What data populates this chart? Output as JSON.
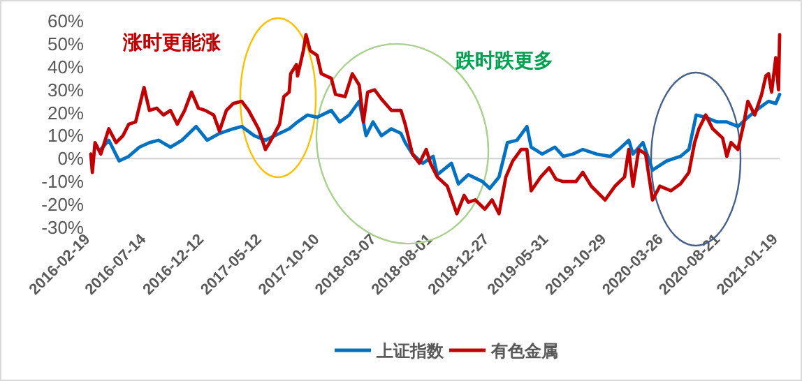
{
  "chart_data": {
    "type": "line",
    "annotations": [
      "涨时更能涨",
      "跌时跌更多"
    ],
    "ref_lines": [
      {
        "axis": "y",
        "value": 0,
        "color": "#d0d0d0"
      }
    ],
    "xlim": [
      "2016-02-19",
      "2021-01-22"
    ],
    "xticks": [
      "2016-02-19",
      "2016-07-14",
      "2016-12-12",
      "2017-05-12",
      "2017-10-10",
      "2018-03-07",
      "2018-08-01",
      "2018-12-27",
      "2019-05-31",
      "2019-10-29",
      "2020-03-26",
      "2020-08-21",
      "2021-01-19"
    ],
    "ylim": [
      -30,
      60
    ],
    "yticks": [
      {
        "value": -30,
        "label": "-30%"
      },
      {
        "value": -20,
        "label": "-20%"
      },
      {
        "value": -10,
        "label": "-10%"
      },
      {
        "value": 0,
        "label": "0%"
      },
      {
        "value": 10,
        "label": "10%"
      },
      {
        "value": 20,
        "label": "20%"
      },
      {
        "value": 30,
        "label": "30%"
      },
      {
        "value": 40,
        "label": "40%"
      },
      {
        "value": 50,
        "label": "50%"
      },
      {
        "value": 60,
        "label": "60%"
      }
    ],
    "legend": "bottom",
    "marker": "none",
    "line_style": "solid",
    "series": [
      {
        "name": "上证指数",
        "color": "#0070c0",
        "x": [
          "2016-03-16",
          "2016-04-06",
          "2016-05-03",
          "2016-05-28",
          "2016-06-25",
          "2016-07-21",
          "2016-08-14",
          "2016-09-14",
          "2016-10-14",
          "2016-11-20",
          "2016-12-19",
          "2017-01-20",
          "2017-02-25",
          "2017-03-19",
          "2017-04-21",
          "2017-05-20",
          "2017-06-26",
          "2017-07-21",
          "2017-08-12",
          "2017-09-07",
          "2017-10-02",
          "2017-11-08",
          "2017-11-30",
          "2017-12-25",
          "2018-01-20",
          "2018-02-07",
          "2018-02-25",
          "2018-03-19",
          "2018-04-14",
          "2018-05-09",
          "2018-05-20",
          "2018-06-08",
          "2018-07-05",
          "2018-08-01",
          "2018-08-12",
          "2018-09-18",
          "2018-10-06",
          "2018-11-01",
          "2018-12-08",
          "2018-12-27",
          "2019-01-20",
          "2019-02-11",
          "2019-03-08",
          "2019-04-03",
          "2019-04-14",
          "2019-05-13",
          "2019-06-15",
          "2019-07-07",
          "2019-08-01",
          "2019-08-27",
          "2019-10-02",
          "2019-11-07",
          "2019-11-29",
          "2019-12-25",
          "2020-01-05",
          "2020-01-31",
          "2020-02-25",
          "2020-04-02",
          "2020-05-08",
          "2020-05-30",
          "2020-06-18",
          "2020-07-13",
          "2020-08-11",
          "2020-09-06",
          "2020-10-05",
          "2020-10-31",
          "2020-11-29",
          "2020-12-24",
          "2021-01-12",
          "2021-01-22"
        ],
        "values": [
          4,
          8,
          -1,
          1,
          5,
          7,
          8,
          5,
          8,
          14,
          8,
          11,
          13,
          14,
          10,
          8,
          11,
          13,
          16,
          19,
          18,
          21,
          16,
          19,
          25,
          10,
          16,
          10,
          13,
          11,
          7,
          2,
          -2,
          1,
          -7,
          -2,
          -11,
          -7,
          -10,
          -13,
          -8,
          7,
          8,
          14,
          5,
          2,
          5,
          1,
          2,
          4,
          2,
          1,
          4,
          8,
          2,
          7,
          -5,
          -1,
          1,
          4,
          19,
          18,
          16,
          16,
          14,
          18,
          22,
          25,
          24,
          28
        ]
      },
      {
        "name": "有色金属",
        "color": "#c00000",
        "x": [
          "2016-02-19",
          "2016-02-23",
          "2016-03-01",
          "2016-03-16",
          "2016-04-06",
          "2016-04-25",
          "2016-05-13",
          "2016-05-28",
          "2016-06-15",
          "2016-07-07",
          "2016-07-21",
          "2016-08-09",
          "2016-08-27",
          "2016-09-14",
          "2016-10-02",
          "2016-10-21",
          "2016-11-08",
          "2016-11-26",
          "2016-12-14",
          "2017-01-05",
          "2017-01-20",
          "2017-02-07",
          "2017-02-25",
          "2017-03-19",
          "2017-04-06",
          "2017-05-02",
          "2017-05-20",
          "2017-05-31",
          "2017-06-26",
          "2017-07-07",
          "2017-07-21",
          "2017-07-25",
          "2017-08-09",
          "2017-08-12",
          "2017-08-27",
          "2017-09-03",
          "2017-09-14",
          "2017-10-02",
          "2017-10-13",
          "2017-11-08",
          "2017-11-19",
          "2017-12-14",
          "2018-01-02",
          "2018-01-20",
          "2018-01-31",
          "2018-02-11",
          "2018-03-01",
          "2018-03-19",
          "2018-04-14",
          "2018-05-09",
          "2018-05-20",
          "2018-06-08",
          "2018-06-26",
          "2018-07-14",
          "2018-07-25",
          "2018-08-12",
          "2018-09-07",
          "2018-10-02",
          "2018-10-21",
          "2018-11-01",
          "2018-11-19",
          "2018-12-14",
          "2019-01-02",
          "2019-01-20",
          "2019-02-07",
          "2019-02-25",
          "2019-03-19",
          "2019-04-03",
          "2019-04-14",
          "2019-05-09",
          "2019-05-31",
          "2019-06-18",
          "2019-07-07",
          "2019-08-09",
          "2019-08-27",
          "2019-09-18",
          "2019-10-24",
          "2019-11-19",
          "2019-12-14",
          "2019-12-25",
          "2020-01-05",
          "2020-01-20",
          "2020-02-07",
          "2020-02-25",
          "2020-03-15",
          "2020-04-13",
          "2020-05-08",
          "2020-05-30",
          "2020-06-14",
          "2020-06-25",
          "2020-07-13",
          "2020-07-31",
          "2020-08-26",
          "2020-09-06",
          "2020-09-17",
          "2020-10-05",
          "2020-10-20",
          "2020-10-31",
          "2020-11-18",
          "2020-12-06",
          "2020-12-17",
          "2020-12-24",
          "2021-01-01",
          "2021-01-12",
          "2021-01-19",
          "2021-01-22"
        ],
        "values": [
          2,
          -6,
          7,
          2,
          13,
          7,
          10,
          15,
          16,
          31,
          21,
          22,
          19,
          21,
          15,
          21,
          29,
          22,
          21,
          19,
          12,
          21,
          24,
          25,
          21,
          13,
          4,
          7,
          15,
          27,
          29,
          37,
          41,
          36,
          47,
          54,
          47,
          45,
          37,
          35,
          28,
          27,
          37,
          32,
          16,
          29,
          30,
          26,
          21,
          21,
          15,
          2,
          -2,
          4,
          -2,
          -8,
          -12,
          -24,
          -16,
          -19,
          -18,
          -22,
          -18,
          -24,
          -8,
          -1,
          4,
          4,
          -14,
          -8,
          -4,
          -9,
          -10,
          -10,
          -6,
          -12,
          -18,
          -12,
          -8,
          4,
          -12,
          4,
          2,
          -18,
          -12,
          -14,
          -11,
          -6,
          7,
          13,
          19,
          13,
          9,
          1,
          7,
          4,
          15,
          25,
          19,
          28,
          36,
          37,
          29,
          44,
          30,
          54
        ]
      }
    ]
  }
}
